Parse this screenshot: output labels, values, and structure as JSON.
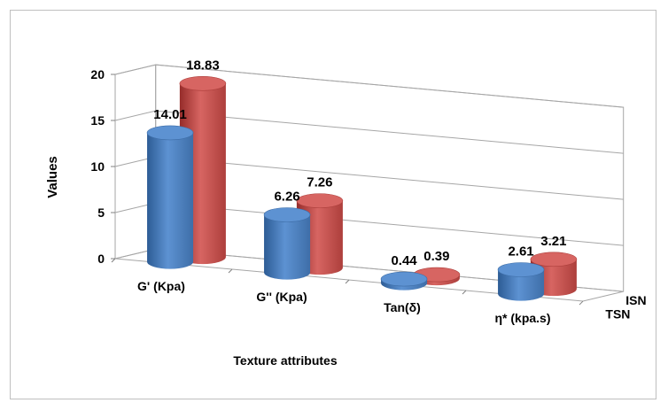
{
  "chart_data": {
    "type": "bar",
    "subtype": "3d-cylinder",
    "title": "",
    "xlabel": "Texture attributes",
    "ylabel": "Values",
    "ylim": [
      0,
      20
    ],
    "yticks": [
      "0",
      "5",
      "10",
      "15",
      "20"
    ],
    "categories": [
      "G' (Kpa)",
      "G'' (Kpa)",
      "Tan(δ)",
      "η* (kpa.s)"
    ],
    "series": [
      {
        "name": "TSN",
        "values": [
          14.01,
          6.26,
          0.44,
          2.61
        ],
        "labels": [
          "14.01",
          "6.26",
          "0.44",
          "2.61"
        ],
        "color": "#4f81bd"
      },
      {
        "name": "ISN",
        "values": [
          18.83,
          7.26,
          0.39,
          3.21
        ],
        "labels": [
          "18.83",
          "7.26",
          "0.39",
          "3.21"
        ],
        "color": "#c0504d"
      }
    ],
    "series_axis_labels": [
      "ISN",
      "TSN"
    ],
    "grid": true,
    "legend": "none"
  }
}
